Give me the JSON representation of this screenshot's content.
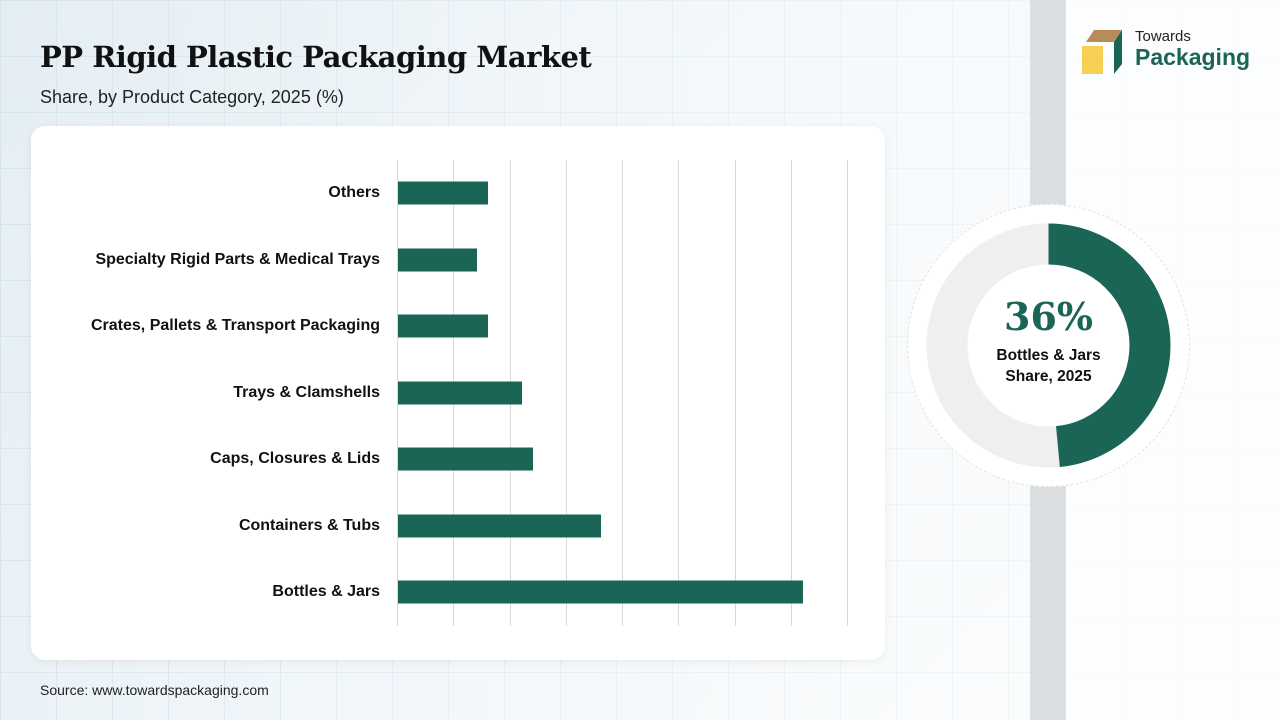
{
  "header": {
    "title": "PP Rigid Plastic Packaging Market",
    "subtitle": "Share, by Product Category, 2025 (%)"
  },
  "logo": {
    "line1": "Towards",
    "line2": "Packaging",
    "colors": {
      "top": "#b98b5a",
      "front": "#f6cf55",
      "side": "#1a6556"
    }
  },
  "donut": {
    "value_label": "36%",
    "caption_line1": "Bottles & Jars",
    "caption_line2": "Share, 2025",
    "fill_color": "#1a6556",
    "track_color": "#efefef"
  },
  "source": "Source: www.towardspackaging.com",
  "chart_data": {
    "type": "bar",
    "orientation": "horizontal",
    "title": "PP Rigid Plastic Packaging Market",
    "subtitle": "Share, by Product Category, 2025 (%)",
    "categories": [
      "Others",
      "Specialty Rigid Parts & Medical Trays",
      "Crates, Pallets & Transport Packaging",
      "Trays & Clamshells",
      "Caps, Closures & Lids",
      "Containers & Tubs",
      "Bottles & Jars"
    ],
    "values": [
      8,
      7,
      8,
      11,
      12,
      18,
      36
    ],
    "xlabel": "",
    "ylabel": "",
    "xlim": [
      0,
      40
    ],
    "grid": true,
    "gridline_step": 5,
    "tick_labels_visible": false,
    "bar_color": "#1a6556",
    "annotation": "36% Bottles & Jars Share, 2025"
  }
}
